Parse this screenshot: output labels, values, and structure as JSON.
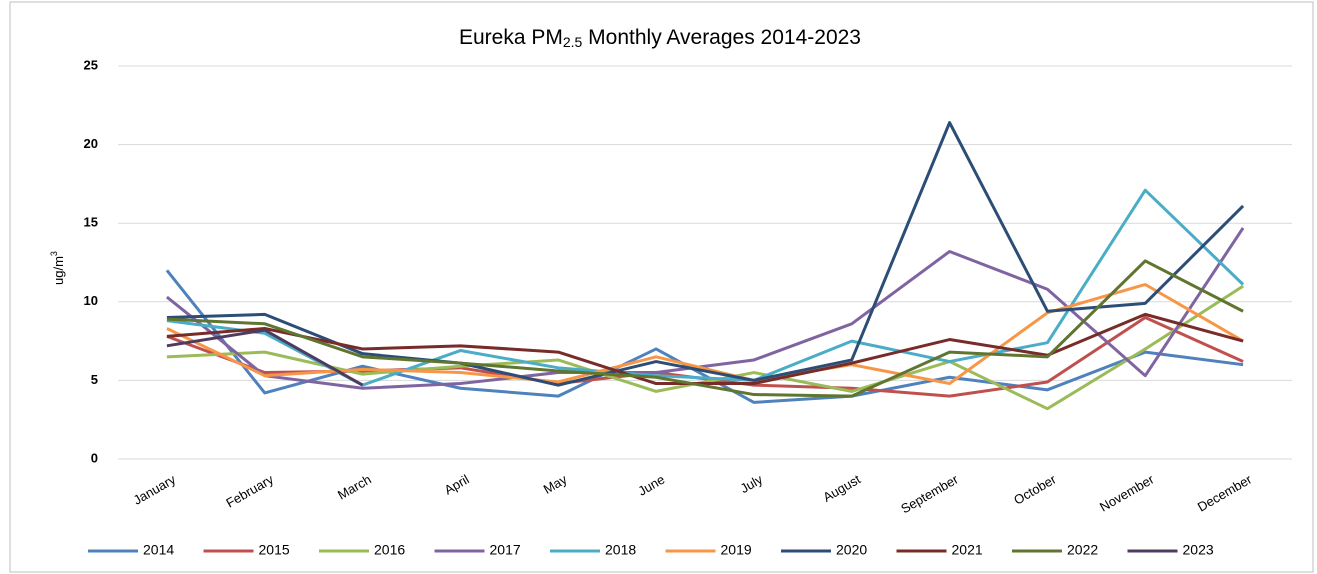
{
  "chart_data": {
    "type": "line",
    "title": {
      "text": "Eureka PM",
      "subscript": "2.5",
      "rest": " Monthly Averages 2014-2023"
    },
    "y_label": {
      "text": "ug/m",
      "superscript": "3"
    },
    "categories": [
      "January",
      "February",
      "March",
      "April",
      "May",
      "June",
      "July",
      "August",
      "September",
      "October",
      "November",
      "December"
    ],
    "series": [
      {
        "name": "2014",
        "color": "#4f81bd",
        "values": [
          12,
          4.2,
          5.9,
          4.5,
          4.0,
          7.0,
          3.6,
          4.0,
          5.2,
          4.4,
          6.8,
          6.0
        ]
      },
      {
        "name": "2015",
        "color": "#c0504d",
        "values": [
          7.8,
          5.5,
          5.6,
          5.8,
          4.8,
          5.5,
          4.7,
          4.5,
          4.0,
          4.9,
          9.0,
          6.2
        ]
      },
      {
        "name": "2016",
        "color": "#9bbb59",
        "values": [
          6.5,
          6.8,
          5.4,
          5.9,
          6.3,
          4.3,
          5.5,
          4.3,
          6.2,
          3.2,
          7.0,
          11.0
        ]
      },
      {
        "name": "2017",
        "color": "#8064a2",
        "values": [
          10.3,
          5.3,
          4.5,
          4.8,
          5.5,
          5.5,
          6.3,
          8.6,
          13.2,
          10.8,
          5.3,
          14.7
        ]
      },
      {
        "name": "2018",
        "color": "#4bacc6",
        "values": [
          8.8,
          8.0,
          4.7,
          6.9,
          5.8,
          5.3,
          5.0,
          7.5,
          6.2,
          7.4,
          17.1,
          11.1
        ]
      },
      {
        "name": "2019",
        "color": "#f79646",
        "values": [
          8.3,
          5.3,
          5.7,
          5.5,
          4.9,
          6.5,
          5.0,
          6.0,
          4.8,
          9.3,
          11.1,
          7.5
        ]
      },
      {
        "name": "2020",
        "color": "#2c4d75",
        "values": [
          9.0,
          9.2,
          6.7,
          6.1,
          4.7,
          6.2,
          5.0,
          6.3,
          21.4,
          9.4,
          9.9,
          16.1
        ]
      },
      {
        "name": "2021",
        "color": "#772c2a",
        "values": [
          7.8,
          8.3,
          7.0,
          7.2,
          6.8,
          4.8,
          4.8,
          6.1,
          7.6,
          6.6,
          9.2,
          7.5
        ]
      },
      {
        "name": "2022",
        "color": "#5f7530",
        "values": [
          8.9,
          8.6,
          6.5,
          6.1,
          5.6,
          5.2,
          4.1,
          4.0,
          6.8,
          6.5,
          12.6,
          9.4
        ]
      },
      {
        "name": "2023",
        "color": "#4d3b62",
        "values": [
          7.2,
          8.2,
          4.7,
          null,
          null,
          null,
          null,
          null,
          null,
          null,
          null,
          null
        ]
      }
    ],
    "ylim": [
      0,
      25
    ],
    "yticks": [
      0,
      5,
      10,
      15,
      20,
      25
    ],
    "grid": true,
    "legend": "bottom"
  }
}
